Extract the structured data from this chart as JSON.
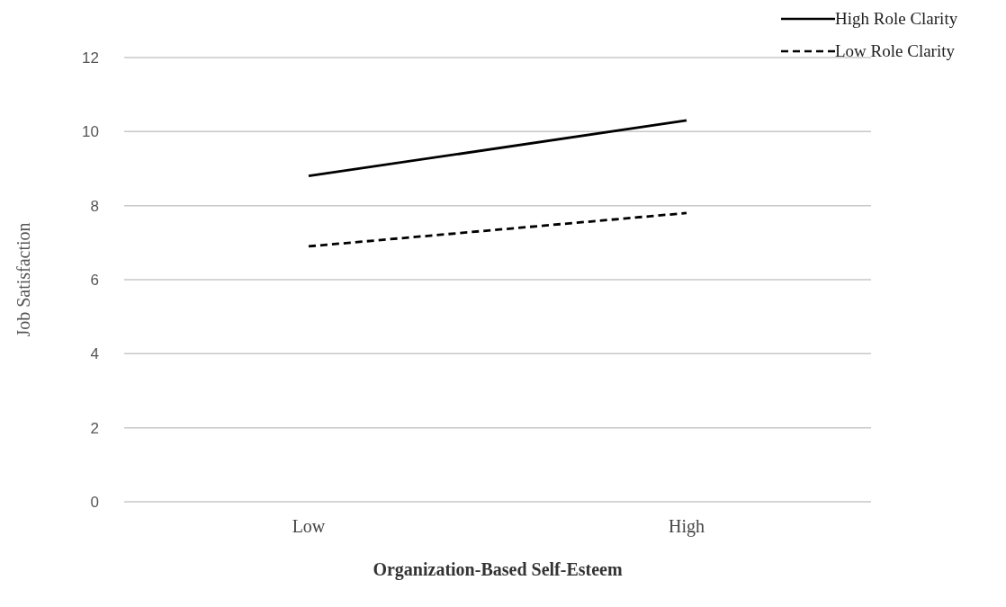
{
  "chart_data": {
    "type": "line",
    "xlabel": "Organization-Based Self-Esteem",
    "ylabel": "Job Satisfaction",
    "categories": [
      "Low",
      "High"
    ],
    "series": [
      {
        "name": "High Role Clarity",
        "color": "#000000",
        "values": [
          8.8,
          10.3
        ],
        "line_style": "solid"
      },
      {
        "name": "Low Role Clarity",
        "color": "#000000",
        "values": [
          6.9,
          7.8
        ],
        "line_style": "dashed"
      }
    ],
    "ylim": [
      0,
      12
    ],
    "yticks": [
      0,
      2,
      4,
      6,
      8,
      10,
      12
    ],
    "grid": "y",
    "legend": "top right",
    "marker": "none"
  }
}
